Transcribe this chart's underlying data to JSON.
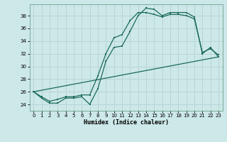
{
  "xlabel": "Humidex (Indice chaleur)",
  "background_color": "#cde8e8",
  "grid_color": "#b8d4d4",
  "line_color": "#1a6b5a",
  "xlim": [
    -0.5,
    23.5
  ],
  "ylim": [
    23.0,
    39.8
  ],
  "xticks": [
    0,
    1,
    2,
    3,
    4,
    5,
    6,
    7,
    8,
    9,
    10,
    11,
    12,
    13,
    14,
    15,
    16,
    17,
    18,
    19,
    20,
    21,
    22,
    23
  ],
  "yticks": [
    24,
    26,
    28,
    30,
    32,
    34,
    36,
    38
  ],
  "series1_x": [
    0,
    1,
    2,
    3,
    4,
    5,
    6,
    7,
    8,
    9,
    10,
    11,
    12,
    13,
    14,
    15,
    16,
    17,
    18,
    19,
    20,
    21,
    22,
    23
  ],
  "series1_y": [
    26.0,
    25.0,
    24.2,
    24.2,
    25.0,
    25.0,
    25.2,
    24.0,
    26.5,
    30.8,
    33.0,
    33.2,
    35.5,
    38.0,
    39.2,
    39.0,
    38.0,
    38.5,
    38.5,
    38.5,
    37.8,
    32.0,
    33.0,
    31.5
  ],
  "series2_x": [
    0,
    1,
    2,
    3,
    4,
    5,
    6,
    7,
    8,
    9,
    10,
    11,
    12,
    13,
    14,
    15,
    16,
    17,
    18,
    19,
    20,
    21,
    22,
    23
  ],
  "series2_y": [
    26.0,
    25.2,
    24.5,
    24.8,
    25.2,
    25.2,
    25.5,
    25.5,
    28.5,
    32.0,
    34.5,
    35.0,
    37.2,
    38.5,
    38.5,
    38.2,
    37.8,
    38.2,
    38.2,
    38.0,
    37.5,
    32.2,
    32.8,
    31.8
  ],
  "series3_x": [
    0,
    23
  ],
  "series3_y": [
    26.0,
    31.5
  ]
}
